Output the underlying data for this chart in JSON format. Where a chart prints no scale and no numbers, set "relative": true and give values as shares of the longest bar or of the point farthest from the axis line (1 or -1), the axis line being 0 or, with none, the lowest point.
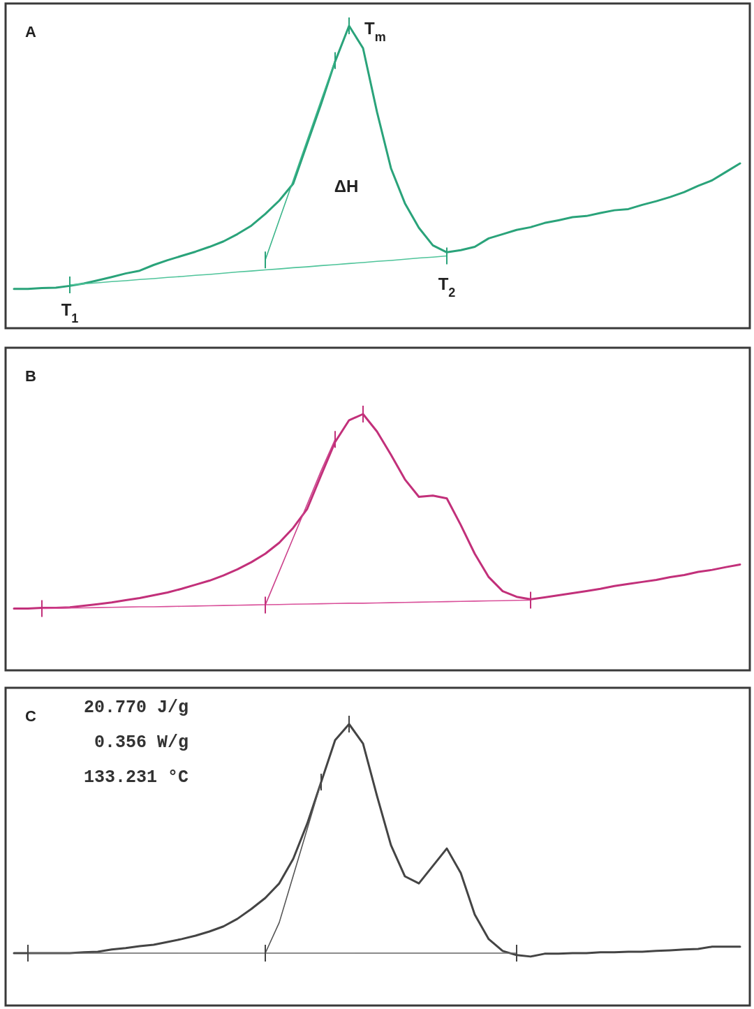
{
  "chart_data": [
    {
      "type": "line",
      "title": "A",
      "relative": true,
      "categories": [
        null,
        null,
        null,
        null,
        null,
        null,
        null,
        null,
        null,
        null,
        null,
        null,
        null,
        null,
        null,
        null,
        null,
        null,
        null,
        null,
        null,
        null,
        null,
        null,
        null,
        null,
        null,
        null,
        null,
        null,
        null,
        null,
        null,
        null,
        null,
        null,
        null,
        null,
        null,
        null,
        null,
        null,
        null,
        null,
        null,
        null,
        null,
        null,
        null,
        null,
        null,
        null,
        null
      ],
      "series": [
        {
          "color": "#2aa37a",
          "values": [
            0.13,
            0.13,
            0.133,
            0.134,
            0.14,
            0.148,
            0.158,
            0.169,
            0.181,
            0.19,
            0.209,
            0.225,
            0.239,
            0.253,
            0.269,
            0.287,
            0.311,
            0.339,
            0.378,
            0.422,
            0.478,
            0.61,
            0.742,
            0.882,
            1,
            0.926,
            0.715,
            0.529,
            0.413,
            0.332,
            0.274,
            0.251,
            0.258,
            0.269,
            0.297,
            0.311,
            0.325,
            0.334,
            0.348,
            0.357,
            0.367,
            0.371,
            0.381,
            0.39,
            0.394,
            0.408,
            0.42,
            0.434,
            0.45,
            0.471,
            0.489,
            0.517,
            0.545
          ]
        },
        {
          "color": "#4fc49a",
          "values": [
            null,
            null,
            null,
            null,
            0.143,
            0.147,
            0.15,
            0.154,
            0.157,
            0.161,
            0.164,
            0.168,
            0.171,
            0.175,
            0.178,
            0.182,
            0.186,
            0.189,
            0.193,
            0.196,
            0.2,
            0.203,
            0.207,
            0.21,
            0.214,
            0.217,
            0.221,
            0.224,
            0.228,
            0.232,
            0.235,
            0.239,
            null,
            null,
            null,
            null,
            null,
            null,
            null,
            null,
            null,
            null,
            null,
            null,
            null,
            null,
            null,
            null,
            null,
            null,
            null,
            null,
            null
          ]
        },
        {
          "color": "#3bb58a",
          "values": [
            null,
            null,
            null,
            null,
            null,
            null,
            null,
            null,
            null,
            null,
            null,
            null,
            null,
            null,
            null,
            null,
            null,
            null,
            0.226,
            0.358,
            0.489,
            0.622,
            0.754,
            0.885,
            null,
            null,
            null,
            null,
            null,
            null,
            null,
            null,
            null,
            null,
            null,
            null,
            null,
            null,
            null,
            null,
            null,
            null,
            null,
            null,
            null,
            null,
            null,
            null,
            null,
            null,
            null,
            null,
            null
          ]
        }
      ],
      "annotations": [
        "T$_{m}$",
        "ΔH",
        "T$_{1}$",
        "T$_{2}$"
      ]
    },
    {
      "type": "line",
      "title": "B",
      "relative": true,
      "categories": [
        null,
        null,
        null,
        null,
        null,
        null,
        null,
        null,
        null,
        null,
        null,
        null,
        null,
        null,
        null,
        null,
        null,
        null,
        null,
        null,
        null,
        null,
        null,
        null,
        null,
        null,
        null,
        null,
        null,
        null,
        null,
        null,
        null,
        null,
        null,
        null,
        null,
        null,
        null,
        null,
        null,
        null,
        null,
        null,
        null,
        null,
        null,
        null,
        null,
        null,
        null,
        null,
        null
      ],
      "series": [
        {
          "color": "#c2307a",
          "values": [
            0.241,
            0.241,
            0.244,
            0.244,
            0.246,
            0.252,
            0.258,
            0.265,
            0.274,
            0.282,
            0.293,
            0.304,
            0.318,
            0.334,
            0.35,
            0.37,
            0.394,
            0.422,
            0.455,
            0.498,
            0.556,
            0.63,
            0.762,
            0.891,
            0.976,
            1,
            0.932,
            0.841,
            0.745,
            0.677,
            0.682,
            0.671,
            0.567,
            0.455,
            0.364,
            0.309,
            0.287,
            0.277,
            0.285,
            0.293,
            0.301,
            0.309,
            0.318,
            0.329,
            0.337,
            0.345,
            0.353,
            0.364,
            0.372,
            0.384,
            0.392,
            0.403,
            0.413
          ]
        },
        {
          "color": "#d9509a",
          "values": [
            null,
            null,
            0.241,
            0.242,
            0.243,
            0.244,
            0.245,
            0.246,
            0.247,
            0.248,
            0.248,
            0.249,
            0.25,
            0.251,
            0.252,
            0.253,
            0.254,
            0.255,
            0.256,
            0.257,
            0.258,
            0.259,
            0.26,
            0.261,
            0.262,
            0.262,
            0.263,
            0.264,
            0.265,
            0.266,
            0.267,
            0.268,
            0.269,
            0.27,
            0.271,
            0.272,
            0.273,
            0.274,
            null,
            null,
            null,
            null,
            null,
            null,
            null,
            null,
            null,
            null,
            null,
            null,
            null,
            null,
            null
          ]
        },
        {
          "color": "#cc428c",
          "values": [
            null,
            null,
            null,
            null,
            null,
            null,
            null,
            null,
            null,
            null,
            null,
            null,
            null,
            null,
            null,
            null,
            null,
            null,
            0.255,
            0.386,
            0.517,
            0.648,
            0.779,
            0.901,
            null,
            null,
            null,
            null,
            null,
            null,
            null,
            null,
            null,
            null,
            null,
            null,
            null,
            null,
            null,
            null,
            null,
            null,
            null,
            null,
            null,
            null,
            null,
            null,
            null,
            null,
            null,
            null,
            null
          ]
        }
      ]
    },
    {
      "type": "line",
      "title": "C",
      "relative": true,
      "categories": [
        null,
        null,
        null,
        null,
        null,
        null,
        null,
        null,
        null,
        null,
        null,
        null,
        null,
        null,
        null,
        null,
        null,
        null,
        null,
        null,
        null,
        null,
        null,
        null,
        null,
        null,
        null,
        null,
        null,
        null,
        null,
        null,
        null,
        null,
        null,
        null,
        null,
        null,
        null,
        null,
        null,
        null,
        null,
        null,
        null,
        null,
        null,
        null,
        null,
        null,
        null,
        null,
        null
      ],
      "series": [
        {
          "color": "#444444",
          "values": [
            0.186,
            0.186,
            0.186,
            0.186,
            0.186,
            0.189,
            0.191,
            0.199,
            0.204,
            0.211,
            0.216,
            0.226,
            0.236,
            0.248,
            0.263,
            0.281,
            0.308,
            0.343,
            0.382,
            0.434,
            0.521,
            0.646,
            0.794,
            0.943,
            1,
            0.931,
            0.745,
            0.57,
            0.459,
            0.434,
            0.496,
            0.558,
            0.471,
            0.323,
            0.236,
            0.194,
            0.179,
            0.174,
            0.184,
            0.184,
            0.186,
            0.186,
            0.189,
            0.189,
            0.191,
            0.191,
            0.194,
            0.196,
            0.199,
            0.201,
            0.209,
            0.209,
            0.209
          ]
        },
        {
          "color": "#666666",
          "values": [
            null,
            0.186,
            0.186,
            0.186,
            0.186,
            0.186,
            0.186,
            0.186,
            0.186,
            0.186,
            0.186,
            0.186,
            0.186,
            0.186,
            0.186,
            0.186,
            0.186,
            0.186,
            0.186,
            0.186,
            0.186,
            0.186,
            0.186,
            0.186,
            0.186,
            0.186,
            0.186,
            0.186,
            0.186,
            0.186,
            0.186,
            0.186,
            0.186,
            0.186,
            0.186,
            0.186,
            0.186,
            null,
            null,
            null,
            null,
            null,
            null,
            null,
            null,
            null,
            null,
            null,
            null,
            null,
            null,
            null,
            null
          ]
        },
        {
          "color": "#555555",
          "values": [
            null,
            null,
            null,
            null,
            null,
            null,
            null,
            null,
            null,
            null,
            null,
            null,
            null,
            null,
            null,
            null,
            null,
            null,
            0.186,
            0.295,
            0.461,
            0.627,
            0.794,
            null,
            null,
            null,
            null,
            null,
            null,
            null,
            null,
            null,
            null,
            null,
            null,
            null,
            null,
            null,
            null,
            null,
            null,
            null,
            null,
            null,
            null,
            null,
            null,
            null,
            null,
            null,
            null,
            null,
            null
          ]
        }
      ],
      "annotations": [
        "20.770 J/g",
        "0.356 W/g",
        "133.231 °C"
      ]
    }
  ]
}
